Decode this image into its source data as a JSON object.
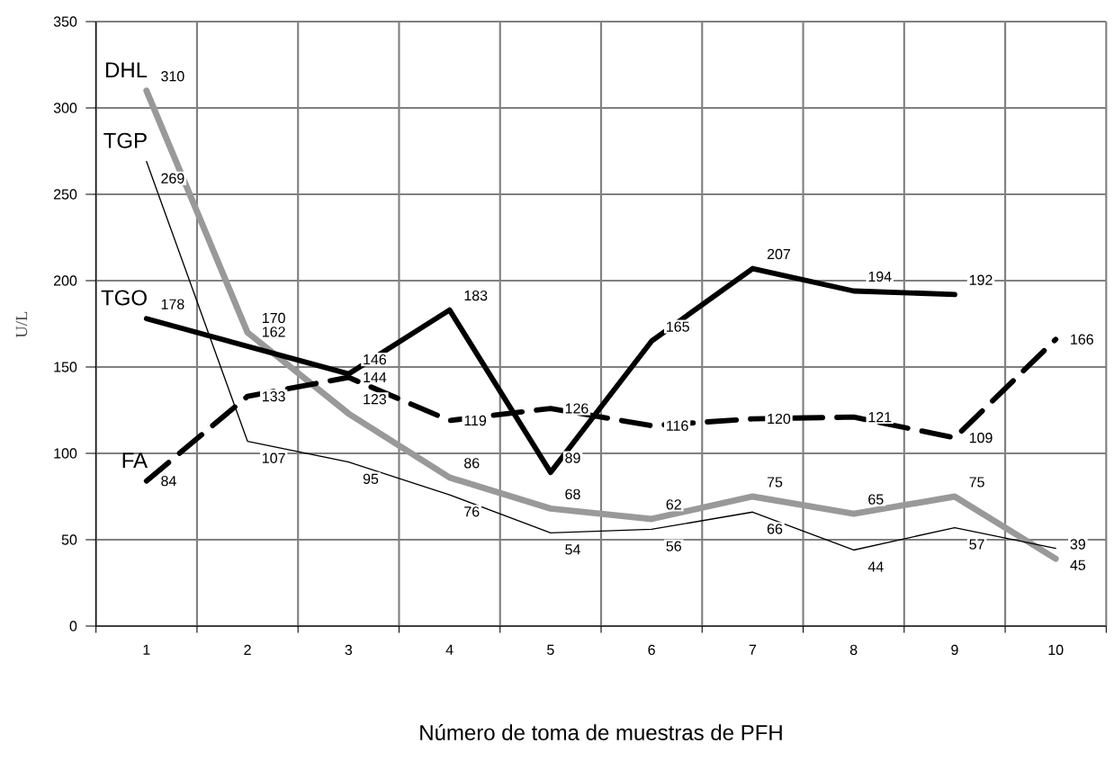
{
  "chart_data": {
    "type": "line",
    "xlabel": "Número de toma de muestras de PFH",
    "ylabel": "U/L",
    "categories": [
      "1",
      "2",
      "3",
      "4",
      "5",
      "6",
      "7",
      "8",
      "9",
      "10"
    ],
    "series": [
      {
        "name": "DHL",
        "color": "#999999",
        "line_style": "solid",
        "values": [
          310,
          170,
          123,
          86,
          68,
          62,
          75,
          65,
          75,
          39
        ]
      },
      {
        "name": "TGP",
        "color": "#000000",
        "line_style": "solid",
        "values": [
          269,
          107,
          95,
          76,
          54,
          56,
          66,
          44,
          57,
          45
        ]
      },
      {
        "name": "TGO",
        "color": "#000000",
        "line_style": "solid",
        "values": [
          178,
          162,
          146,
          183,
          89,
          165,
          207,
          194,
          192,
          null
        ]
      },
      {
        "name": "FA",
        "color": "#000000",
        "line_style": "dashed",
        "values": [
          84,
          133,
          144,
          119,
          126,
          116,
          120,
          121,
          109,
          166
        ]
      }
    ],
    "ylim": [
      0,
      350
    ],
    "yticks": [
      0,
      50,
      100,
      150,
      200,
      250,
      300,
      350
    ],
    "grid": true,
    "legend": false,
    "data_labels": true
  }
}
